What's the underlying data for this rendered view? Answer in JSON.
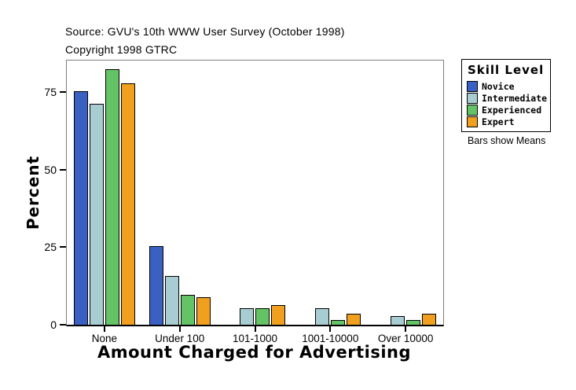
{
  "header": {
    "source": "Source: GVU's 10th WWW User Survey (October 1998)",
    "copyright": "Copyright 1998 GTRC"
  },
  "chart_data": {
    "type": "bar",
    "title": "",
    "xlabel": "Amount Charged for Advertising",
    "ylabel": "Percent",
    "ylim": [
      0,
      85
    ],
    "yticks": [
      0,
      25,
      50,
      75
    ],
    "grid": false,
    "legend_position": "right",
    "categories": [
      "None",
      "Under 100",
      "101-1000",
      "1001-10000",
      "Over 10000"
    ],
    "series": [
      {
        "name": "Novice",
        "color": "#3A61C2",
        "values": [
          75,
          25,
          0,
          0,
          0
        ]
      },
      {
        "name": "Intermediate",
        "color": "#A7CCD1",
        "values": [
          71,
          15.5,
          5,
          5,
          2.5
        ]
      },
      {
        "name": "Experienced",
        "color": "#64C364",
        "values": [
          82,
          9.5,
          5,
          1.3,
          1.3
        ]
      },
      {
        "name": "Expert",
        "color": "#F0A01E",
        "values": [
          77.5,
          8.5,
          6,
          3.4,
          3.4
        ]
      }
    ]
  },
  "legend": {
    "title": "Skill Level",
    "note": "Bars show Means"
  }
}
